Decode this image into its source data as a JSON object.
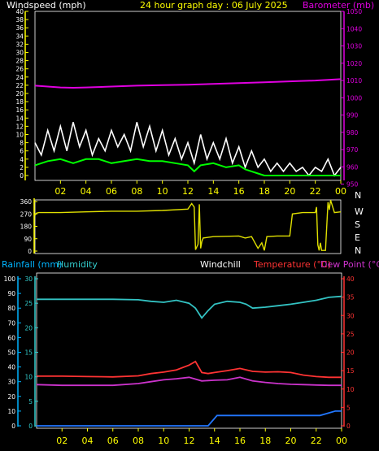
{
  "header": {
    "windspeed_label": "Windspeed (mph)",
    "title": "24 hour graph day : 06 July 2025",
    "barometer_label": "Barometer (mb)"
  },
  "lower_header": {
    "rainfall_label": "Rainfall (mm)",
    "humidity_label": "Humidity",
    "windchill_label": "Windchill",
    "temperature_label": "Temperature (°C)",
    "dewpoint_label": "Dew Point (°C)"
  },
  "colors": {
    "background": "#000000",
    "axis_yellow": "#ffff00",
    "wind_ticks": "#ffffff",
    "barometer": "#e000e0",
    "gust": "#ffffff",
    "avg_wind": "#00ff00",
    "direction": "#e0e000",
    "rain_axis": "#00b4ff",
    "humidity_axis": "#33cccc",
    "humidity_line": "#33c3c3",
    "temperature": "#ff3333",
    "dewpoint": "#cc33cc",
    "rain_line": "#2277ff"
  },
  "chart_data": [
    {
      "type": "line",
      "name": "wind-and-barometer",
      "x_ticks": [
        "02",
        "04",
        "06",
        "08",
        "10",
        "12",
        "14",
        "16",
        "18",
        "20",
        "22",
        "00"
      ],
      "x_range": [
        0,
        24
      ],
      "y_left_ticks": [
        "0",
        "2",
        "4",
        "6",
        "8",
        "10",
        "12",
        "14",
        "16",
        "18",
        "20",
        "22",
        "24",
        "26",
        "28",
        "30",
        "32",
        "34",
        "36",
        "38",
        "40"
      ],
      "y_left_range": [
        0,
        40
      ],
      "y_right_ticks": [
        "950",
        "960",
        "970",
        "980",
        "990",
        "1000",
        "1010",
        "1020",
        "1030",
        "1040",
        "1050"
      ],
      "y_right_range": [
        955,
        1050
      ],
      "series": [
        {
          "key": "barometer",
          "axis": "right",
          "x": [
            0,
            1,
            2,
            3,
            4,
            6,
            8,
            10,
            12,
            14,
            16,
            18,
            20,
            22,
            24
          ],
          "values": [
            1007,
            1006.5,
            1006,
            1005.8,
            1006,
            1006.5,
            1007,
            1007.3,
            1007.6,
            1008,
            1008.5,
            1009,
            1009.5,
            1010,
            1010.8
          ]
        },
        {
          "key": "gust",
          "axis": "left",
          "x": [
            0,
            0.5,
            1,
            1.5,
            2,
            2.5,
            3,
            3.5,
            4,
            4.5,
            5,
            5.5,
            6,
            6.5,
            7,
            7.5,
            8,
            8.5,
            9,
            9.5,
            10,
            10.5,
            11,
            11.5,
            12,
            12.5,
            13,
            13.5,
            14,
            14.5,
            15,
            15.5,
            16,
            16.5,
            17,
            17.5,
            18,
            18.5,
            19,
            19.5,
            20,
            20.5,
            21,
            21.5,
            22,
            22.5,
            23,
            23.5,
            24
          ],
          "values": [
            8,
            5,
            11,
            6,
            12,
            6,
            13,
            7,
            11,
            5,
            9,
            6,
            11,
            7,
            10,
            6,
            13,
            7,
            12,
            6,
            11,
            5,
            9,
            4,
            8,
            3,
            10,
            4,
            8,
            4,
            9,
            3,
            7,
            2,
            6,
            2,
            4,
            1,
            3,
            1,
            3,
            1,
            2,
            0,
            2,
            1,
            4,
            0,
            2
          ]
        },
        {
          "key": "avg_wind",
          "axis": "left",
          "x": [
            0,
            1,
            2,
            3,
            4,
            5,
            6,
            7,
            8,
            9,
            10,
            11,
            12,
            12.5,
            13,
            14,
            15,
            16,
            16.5,
            17,
            17.5,
            18,
            19,
            20,
            21,
            22,
            23,
            24
          ],
          "values": [
            2.5,
            3.5,
            4,
            3,
            4,
            4,
            3,
            3.5,
            4,
            3.5,
            3.5,
            3,
            2.5,
            1,
            2.5,
            3,
            2,
            2.5,
            1.5,
            1,
            0.5,
            0,
            0,
            0,
            0,
            0,
            0,
            0
          ]
        }
      ]
    },
    {
      "type": "line",
      "name": "wind-direction",
      "x_range": [
        0,
        24
      ],
      "y_ticks": [
        "0",
        "90",
        "180",
        "270",
        "360"
      ],
      "y_range": [
        0,
        360
      ],
      "compass_labels": [
        "N",
        "W",
        "S",
        "E",
        "N"
      ],
      "series": [
        {
          "key": "direction",
          "x": [
            0,
            0.1,
            0.3,
            2,
            4,
            6,
            8,
            10,
            12,
            12.3,
            12.5,
            12.6,
            12.8,
            12.9,
            13,
            13.1,
            13.2,
            14,
            16,
            16.5,
            17,
            17.5,
            17.8,
            18,
            18.2,
            19,
            20,
            20.2,
            21,
            22,
            22.1,
            22.2,
            22.3,
            22.4,
            22.5,
            22.8,
            23,
            23.1,
            23.2,
            23.5,
            24
          ],
          "values": [
            260,
            275,
            280,
            280,
            285,
            290,
            290,
            295,
            305,
            345,
            320,
            10,
            50,
            340,
            20,
            70,
            95,
            105,
            110,
            95,
            105,
            20,
            60,
            5,
            105,
            110,
            110,
            270,
            280,
            280,
            320,
            45,
            5,
            60,
            5,
            5,
            355,
            300,
            370,
            280,
            285
          ]
        }
      ]
    },
    {
      "type": "line",
      "name": "rain-humidity-temperature",
      "x_ticks": [
        "02",
        "04",
        "06",
        "08",
        "10",
        "12",
        "14",
        "16",
        "18",
        "20",
        "22",
        "00"
      ],
      "x_range": [
        0,
        24
      ],
      "rain_ticks": [
        "0",
        "10",
        "20",
        "30",
        "40",
        "50",
        "60",
        "70",
        "80",
        "90",
        "100"
      ],
      "rain_range": [
        0,
        100
      ],
      "humidity_ticks": [
        "0",
        "5",
        "10",
        "15",
        "20",
        "25",
        "30"
      ],
      "humidity_range": [
        0,
        30
      ],
      "temperature_ticks": [
        "0",
        "5",
        "10",
        "15",
        "20",
        "25",
        "30",
        "35",
        "40"
      ],
      "temperature_range": [
        0,
        40
      ],
      "series": [
        {
          "key": "humidity",
          "axis": "humidity",
          "x": [
            0,
            2,
            4,
            6,
            8,
            9,
            10,
            11,
            12,
            12.5,
            13,
            13.5,
            14,
            15,
            16,
            16.5,
            17,
            18,
            19,
            20,
            21,
            22,
            23,
            24
          ],
          "values": [
            25.8,
            25.8,
            25.8,
            25.8,
            25.7,
            25.4,
            25.2,
            25.6,
            25,
            24,
            22,
            23.5,
            24.8,
            25.4,
            25.2,
            24.8,
            24,
            24.2,
            24.5,
            24.8,
            25.2,
            25.6,
            26.2,
            26.4
          ]
        },
        {
          "key": "temperature",
          "axis": "temperature",
          "x": [
            0,
            2,
            4,
            6,
            8,
            9,
            10,
            11,
            12,
            12.5,
            13,
            13.5,
            14,
            15,
            16,
            17,
            18,
            19,
            20,
            21,
            22,
            23,
            24
          ],
          "values": [
            13.5,
            13.5,
            13.4,
            13.3,
            13.6,
            14.2,
            14.6,
            15.2,
            16.5,
            17.5,
            14.5,
            14.2,
            14.5,
            15,
            15.6,
            14.8,
            14.6,
            14.7,
            14.5,
            13.8,
            13.4,
            13.2,
            13.2
          ]
        },
        {
          "key": "dewpoint",
          "axis": "temperature",
          "x": [
            0,
            2,
            4,
            6,
            8,
            9,
            10,
            11,
            12,
            13,
            14,
            15,
            16,
            17,
            18,
            19,
            20,
            21,
            22,
            23,
            24
          ],
          "values": [
            11.2,
            11,
            11,
            11,
            11.5,
            12,
            12.5,
            12.8,
            13.2,
            12.2,
            12.4,
            12.5,
            13.2,
            12.2,
            11.8,
            11.5,
            11.3,
            11.2,
            11.1,
            11,
            11
          ]
        },
        {
          "key": "rain",
          "axis": "rain",
          "x": [
            0,
            13.5,
            14.2,
            15,
            17,
            20,
            22.3,
            23.5,
            24
          ],
          "values": [
            0,
            0,
            7,
            7,
            7,
            7,
            7,
            10,
            10
          ]
        }
      ]
    }
  ]
}
